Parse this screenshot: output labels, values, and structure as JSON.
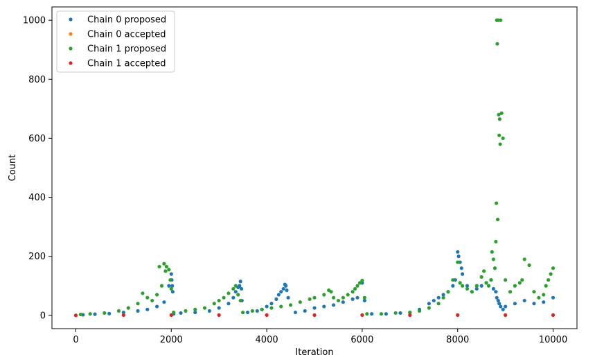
{
  "chart_data": {
    "type": "scatter",
    "xlabel": "Iteration",
    "ylabel": "Count",
    "xlim": [
      -500,
      10500
    ],
    "ylim": [
      -45,
      1045
    ],
    "xticks": [
      0,
      2000,
      4000,
      6000,
      8000,
      10000
    ],
    "yticks": [
      0,
      200,
      400,
      600,
      800,
      1000
    ],
    "xtick_labels": [
      "0",
      "2000",
      "4000",
      "6000",
      "8000",
      "10000"
    ],
    "ytick_labels": [
      "0",
      "200",
      "400",
      "600",
      "800",
      "1000"
    ],
    "grid": false,
    "legend_position": "top-left",
    "series": [
      {
        "name": "Chain 0 proposed",
        "color": "#1f77b4",
        "x": [
          150,
          400,
          700,
          1000,
          1300,
          1500,
          1700,
          1850,
          1950,
          2000,
          2010,
          2020,
          2030,
          2050,
          2200,
          2500,
          2800,
          3000,
          3200,
          3300,
          3350,
          3400,
          3430,
          3450,
          3470,
          3480,
          3600,
          3800,
          3900,
          4000,
          4100,
          4200,
          4250,
          4300,
          4350,
          4380,
          4400,
          4420,
          4450,
          4600,
          4800,
          5000,
          5200,
          5400,
          5600,
          5800,
          5900,
          6000,
          6050,
          6200,
          6500,
          6800,
          7000,
          7200,
          7400,
          7500,
          7600,
          7700,
          7800,
          7900,
          7950,
          8000,
          8020,
          8050,
          8080,
          8100,
          8200,
          8300,
          8400,
          8500,
          8600,
          8700,
          8750,
          8800,
          8820,
          8850,
          8870,
          8900,
          8950,
          9000,
          9200,
          9400,
          9600,
          9800,
          10000
        ],
        "y": [
          2,
          4,
          6,
          10,
          15,
          20,
          30,
          45,
          100,
          140,
          120,
          100,
          80,
          5,
          8,
          10,
          15,
          25,
          40,
          60,
          80,
          95,
          100,
          115,
          90,
          50,
          10,
          15,
          20,
          30,
          40,
          55,
          70,
          80,
          90,
          105,
          100,
          85,
          60,
          10,
          15,
          25,
          30,
          35,
          45,
          55,
          60,
          110,
          50,
          5,
          5,
          8,
          10,
          20,
          40,
          50,
          60,
          70,
          80,
          100,
          120,
          215,
          200,
          180,
          160,
          140,
          100,
          80,
          90,
          100,
          110,
          120,
          90,
          80,
          60,
          50,
          40,
          30,
          20,
          30,
          40,
          50,
          40,
          45,
          60
        ]
      },
      {
        "name": "Chain 0 accepted",
        "color": "#ff7f0e",
        "x": [
          0,
          1000,
          2000,
          3000,
          4000,
          5000,
          6000,
          7000,
          8000,
          9000,
          10000
        ],
        "y": [
          0,
          1,
          1,
          1,
          1,
          1,
          1,
          1,
          1,
          1,
          1
        ]
      },
      {
        "name": "Chain 1 proposed",
        "color": "#2ca02c",
        "x": [
          100,
          300,
          600,
          900,
          1100,
          1300,
          1400,
          1500,
          1600,
          1700,
          1750,
          1800,
          1850,
          1880,
          1900,
          1950,
          1980,
          2000,
          2050,
          2300,
          2500,
          2700,
          2900,
          3000,
          3100,
          3200,
          3300,
          3350,
          3400,
          3450,
          3500,
          3700,
          3900,
          4100,
          4300,
          4500,
          4700,
          4900,
          5000,
          5200,
          5300,
          5350,
          5400,
          5500,
          5600,
          5700,
          5800,
          5850,
          5900,
          5950,
          6000,
          6050,
          6100,
          6400,
          6700,
          7000,
          7200,
          7400,
          7600,
          7700,
          7800,
          7900,
          8000,
          8050,
          8100,
          8200,
          8300,
          8400,
          8500,
          8550,
          8600,
          8650,
          8700,
          8720,
          8750,
          8780,
          8800,
          8810,
          8820,
          8830,
          8840,
          8850,
          8860,
          8870,
          8880,
          8890,
          8900,
          8920,
          8950,
          9000,
          9100,
          9200,
          9300,
          9350,
          9400,
          9500,
          9600,
          9700,
          9800,
          9850,
          9900,
          9950,
          10000
        ],
        "y": [
          3,
          5,
          8,
          15,
          25,
          40,
          75,
          60,
          50,
          70,
          165,
          100,
          175,
          150,
          165,
          155,
          120,
          90,
          10,
          15,
          20,
          25,
          40,
          50,
          60,
          75,
          90,
          100,
          70,
          50,
          10,
          15,
          20,
          25,
          30,
          35,
          45,
          55,
          60,
          70,
          85,
          80,
          60,
          50,
          60,
          70,
          80,
          90,
          100,
          110,
          118,
          60,
          5,
          5,
          8,
          10,
          15,
          25,
          40,
          60,
          80,
          120,
          180,
          110,
          100,
          90,
          80,
          100,
          130,
          150,
          110,
          100,
          120,
          215,
          190,
          160,
          250,
          380,
          1000,
          920,
          325,
          1000,
          680,
          610,
          665,
          580,
          1000,
          685,
          600,
          120,
          80,
          100,
          110,
          120,
          190,
          170,
          80,
          60,
          70,
          100,
          120,
          140,
          160
        ]
      },
      {
        "name": "Chain 1 accepted",
        "color": "#d62728",
        "x": [
          0,
          1000,
          2000,
          3000,
          4000,
          5000,
          6000,
          7000,
          8000,
          9000,
          10000
        ],
        "y": [
          0,
          1,
          1,
          1,
          1,
          1,
          1,
          1,
          1,
          1,
          1
        ]
      }
    ]
  }
}
